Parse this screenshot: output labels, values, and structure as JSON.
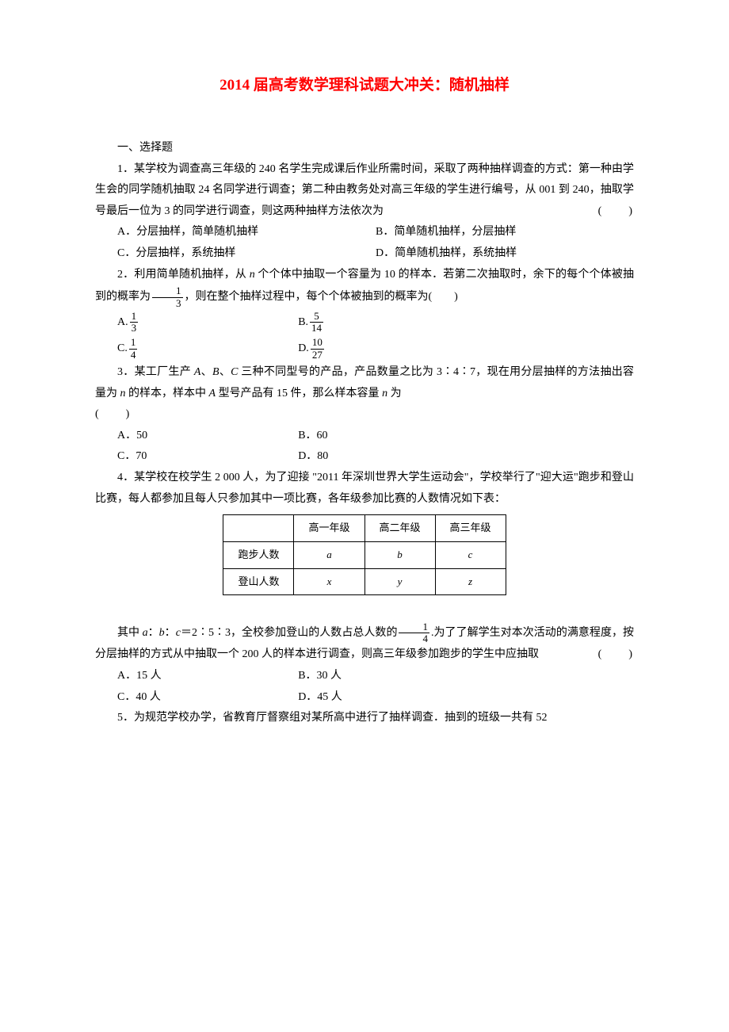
{
  "title": "2014 届高考数学理科试题大冲关：随机抽样",
  "section1": "一、选择题",
  "q1": {
    "stem1": "1．某学校为调查高三年级的 240 名学生完成课后作业所需时间，采取了两种抽样调查的方式：第一种由学生会的同学随机抽取 24 名同学进行调查；第二种由教务处对高三年级的学生进行编号，从 001 到 240，抽取学号最后一位为 3 的同学进行调查，则这两种抽样方法依次为",
    "paren": "(　　)",
    "a": "A．分层抽样，简单随机抽样",
    "b": "B．简单随机抽样，分层抽样",
    "c": "C．分层抽样，系统抽样",
    "d": "D．简单随机抽样，系统抽样"
  },
  "q2": {
    "stem_before": "2．利用简单随机抽样，从 ",
    "n": "n",
    "stem_mid1": " 个个体中抽取一个容量为 10 的样本．若第二次抽取时，余下的每个个体被抽到的概率为",
    "frac1_num": "1",
    "frac1_den": "3",
    "stem_mid2": "，则在整个抽样过程中，每个个体被抽到的概率为(　　)",
    "a_label": "A.",
    "a_num": "1",
    "a_den": "3",
    "b_label": "B.",
    "b_num": "5",
    "b_den": "14",
    "c_label": "C.",
    "c_num": "1",
    "c_den": "4",
    "d_label": "D.",
    "d_num": "10",
    "d_den": "27"
  },
  "q3": {
    "stem_a": "3．某工厂生产 ",
    "A": "A",
    "B": "B",
    "C": "C",
    "stem_b": "、",
    "stem_c": " 三种不同型号的产品，产品数量之比为 3∶4∶7，现在用分层抽样的方法抽出容量为 ",
    "n": "n",
    "stem_d": " 的样本，样本中 ",
    "stem_e": " 型号产品有 15 件，那么样本容量 ",
    "stem_f": " 为",
    "paren": "(　　)",
    "a": "A．50",
    "b": "B．60",
    "c": "C．70",
    "d": "D．80"
  },
  "q4": {
    "stem1": "4．某学校在校学生 2 000 人，为了迎接 \"2011 年深圳世界大学生运动会\"，学校举行了\"迎大运\"跑步和登山比赛，每人都参加且每人只参加其中一项比赛，各年级参加比赛的人数情况如下表：",
    "table": {
      "headers": [
        "",
        "高一年级",
        "高二年级",
        "高三年级"
      ],
      "rows": [
        [
          "跑步人数",
          "a",
          "b",
          "c"
        ],
        [
          "登山人数",
          "x",
          "y",
          "z"
        ]
      ]
    },
    "stem2_a": "其中 ",
    "a": "a",
    "b": "b",
    "c": "c",
    "colon": "：",
    "ratio": "＝2∶5∶3，全校参加登山的人数占总人数的",
    "frac_num": "1",
    "frac_den": "4",
    "stem2_b": ".为了了解学生对本次活动的满意程度，按分层抽样的方式从中抽取一个 200 人的样本进行调查，则高三年级参加跑步的学生中应抽取",
    "paren": "(　　)",
    "ca": "A．15 人",
    "cb": "B．30 人",
    "cc": "C．40 人",
    "cd": "D．45 人"
  },
  "q5": {
    "stem": "5．为规范学校办学，省教育厅督察组对某所高中进行了抽样调查．抽到的班级一共有 52"
  }
}
